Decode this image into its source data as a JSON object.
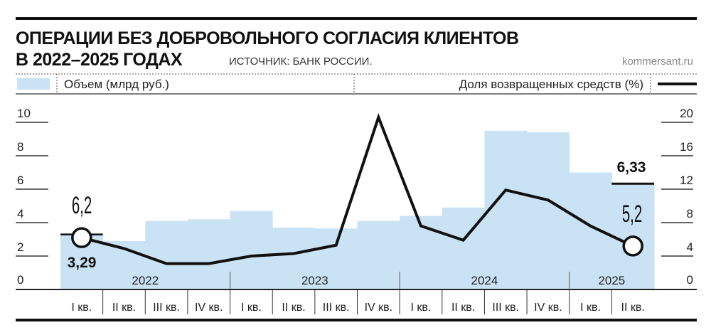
{
  "title_line1": "ОПЕРАЦИИ БЕЗ ДОБРОВОЛЬНОГО СОГЛАСИЯ КЛИЕНТОВ",
  "title_line2": "В 2022–2025 ГОДАХ",
  "source": "ИСТОЧНИК: БАНК РОССИИ.",
  "site": "kommersant.ru",
  "colors": {
    "bars": "#c9e3f4",
    "line": "#111111"
  },
  "chart_data": {
    "type": "bar+line",
    "categories": [
      "I кв.",
      "II кв.",
      "III кв.",
      "IV кв.",
      "I кв.",
      "II кв.",
      "III кв.",
      "IV кв.",
      "I кв.",
      "II кв.",
      "III кв.",
      "IV кв.",
      "I кв.",
      "II кв."
    ],
    "years": [
      {
        "label": "2022",
        "quarters": 4
      },
      {
        "label": "2023",
        "quarters": 4
      },
      {
        "label": "2024",
        "quarters": 4
      },
      {
        "label": "2025",
        "quarters": 2
      }
    ],
    "series": [
      {
        "name": "Объем (млрд руб.)",
        "type": "bar",
        "axis": "left",
        "values": [
          3.29,
          2.9,
          4.1,
          4.2,
          4.7,
          3.7,
          3.65,
          4.1,
          4.4,
          4.9,
          9.5,
          9.4,
          7.0,
          6.33
        ]
      },
      {
        "name": "Доля возвращенных средств (%)",
        "type": "line",
        "axis": "right",
        "values": [
          6.2,
          4.9,
          3.1,
          3.1,
          4.0,
          4.3,
          5.3,
          20.6,
          7.6,
          5.9,
          11.9,
          10.7,
          7.6,
          5.2
        ]
      }
    ],
    "left_axis": {
      "ylim": [
        0,
        10
      ],
      "ticks": [
        "0",
        "2",
        "4",
        "6",
        "8",
        "10"
      ]
    },
    "right_axis": {
      "ylim": [
        0,
        20
      ],
      "ticks": [
        "0",
        "4",
        "8",
        "12",
        "16",
        "20"
      ]
    },
    "annotations": {
      "first_bar": "3,29",
      "first_line": "6,2",
      "last_bar": "6,33",
      "last_line": "5,2"
    },
    "legend_placement": "top"
  }
}
